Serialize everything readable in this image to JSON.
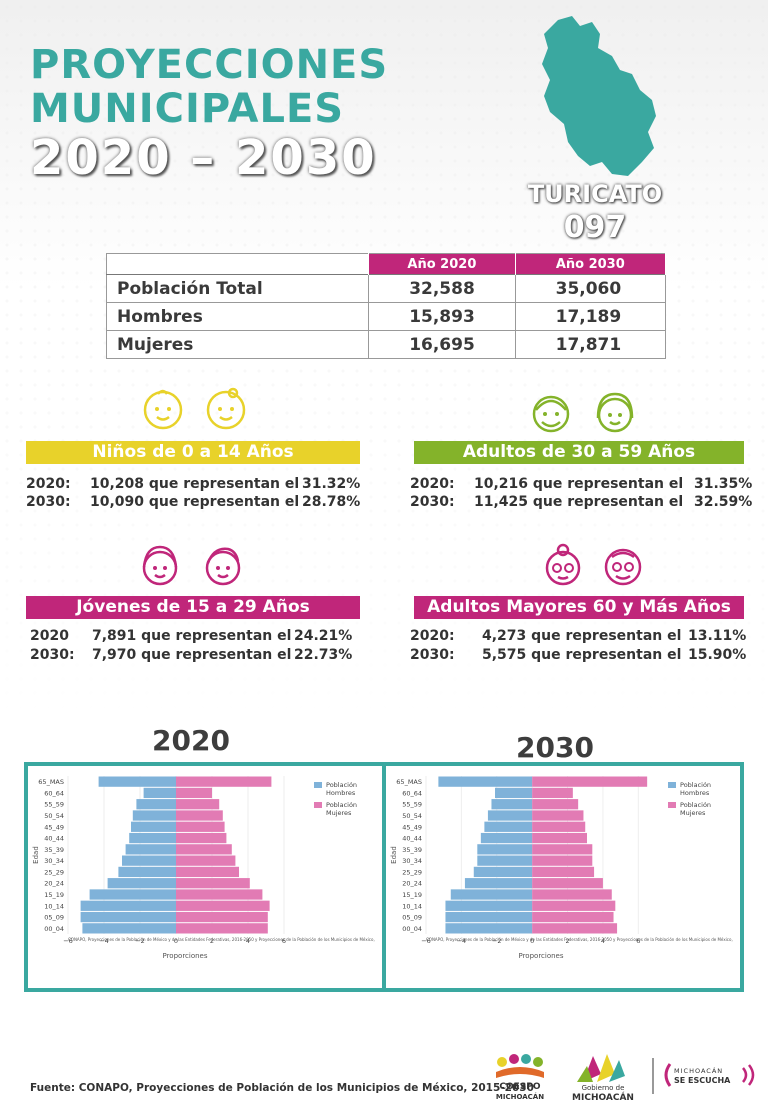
{
  "header": {
    "title_line1": "PROYECCIONES",
    "title_line2": "MUNICIPALES",
    "title_line3": "2020 – 2030",
    "municipality": "TURICATO",
    "code": "097"
  },
  "population_table": {
    "col_2020": "Año 2020",
    "col_2030": "Año 2030",
    "rows": [
      {
        "label": "Población Total",
        "v2020": "32,588",
        "v2030": "35,060"
      },
      {
        "label": "Hombres",
        "v2020": "15,893",
        "v2030": "17,189"
      },
      {
        "label": "Mujeres",
        "v2020": "16,695",
        "v2030": "17,871"
      }
    ]
  },
  "age_groups": {
    "ninos": {
      "title": "Niños de 0 a 14 Años",
      "rows": [
        {
          "year": "2020:",
          "value": "10,208 que representan el",
          "pct": "31.32%"
        },
        {
          "year": "2030:",
          "value": "10,090 que representan el",
          "pct": "28.78%"
        }
      ]
    },
    "adultos": {
      "title": "Adultos de 30 a 59 Años",
      "rows": [
        {
          "year": "2020:",
          "value": "10,216 que representan el",
          "pct": "31.35%"
        },
        {
          "year": "2030:",
          "value": "11,425 que representan el",
          "pct": "32.59%"
        }
      ]
    },
    "jovenes": {
      "title": "Jóvenes de 15 a 29 Años",
      "rows": [
        {
          "year": "2020",
          "value": "7,891 que representan el",
          "pct": "24.21%"
        },
        {
          "year": "2030:",
          "value": "7,970 que representan el",
          "pct": "22.73%"
        }
      ]
    },
    "mayores": {
      "title": "Adultos Mayores  60 y Más Años",
      "rows": [
        {
          "year": "2020:",
          "value": "4,273 que representan el",
          "pct": "13.11%"
        },
        {
          "year": "2030:",
          "value": "5,575 que representan el",
          "pct": "15.90%"
        }
      ]
    }
  },
  "colors": {
    "teal": "#3aa8a0",
    "magenta": "#c0267a",
    "yellow": "#e8d22a",
    "green": "#84b32a",
    "hombres": "#7fb2d9",
    "mujeres": "#e27bb4"
  },
  "chart_data": [
    {
      "type": "bar",
      "title": "2020",
      "xlabel": "Proporciones",
      "ylabel": "Edad",
      "categories": [
        "00_04",
        "05_09",
        "10_14",
        "15_19",
        "20_24",
        "25_29",
        "30_34",
        "35_39",
        "40_44",
        "45_49",
        "50_54",
        "55_59",
        "60_64",
        "65_MAS"
      ],
      "series": [
        {
          "name": "Población Hombres",
          "values": [
            -5.2,
            -5.3,
            -5.3,
            -4.8,
            -3.8,
            -3.2,
            -3.0,
            -2.8,
            -2.6,
            -2.5,
            -2.4,
            -2.2,
            -1.8,
            -4.3
          ]
        },
        {
          "name": "Población Mujeres",
          "values": [
            5.1,
            5.1,
            5.2,
            4.8,
            4.1,
            3.5,
            3.3,
            3.1,
            2.8,
            2.7,
            2.6,
            2.4,
            2.0,
            5.3
          ]
        }
      ],
      "xlim": [
        -6,
        7
      ],
      "xticks": [
        "−6",
        "−4",
        "−2",
        "0",
        "2",
        "4",
        "6"
      ],
      "legend": "top-right",
      "note": "CONAPO, Proyecciones de la Población de México y de las Entidades Federativas, 2016-2050 y Proyecciones de la Población de los Municipios de México,"
    },
    {
      "type": "bar",
      "title": "2030",
      "xlabel": "Proporciones",
      "ylabel": "Edad",
      "categories": [
        "00_04",
        "05_09",
        "10_14",
        "15_19",
        "20_24",
        "25_29",
        "30_34",
        "35_39",
        "40_44",
        "45_49",
        "50_54",
        "55_59",
        "60_64",
        "65_MAS"
      ],
      "series": [
        {
          "name": "Población Hombres",
          "values": [
            -4.9,
            -4.9,
            -4.9,
            -4.6,
            -3.8,
            -3.3,
            -3.1,
            -3.1,
            -2.9,
            -2.7,
            -2.5,
            -2.3,
            -2.1,
            -5.3
          ]
        },
        {
          "name": "Población Mujeres",
          "values": [
            4.8,
            4.6,
            4.7,
            4.5,
            4.0,
            3.5,
            3.4,
            3.4,
            3.1,
            3.0,
            2.9,
            2.6,
            2.3,
            6.5
          ]
        }
      ],
      "xlim": [
        -6,
        7
      ],
      "xticks": [
        "−6",
        "−4",
        "−2",
        "0",
        "2",
        "4",
        "6"
      ],
      "legend": "top-right",
      "note": "CONAPO, Proyecciones de la Población de México y de las Entidades Federativas, 2016-2050 y Proyecciones de la Población de los Municipios de México,"
    }
  ],
  "footer": {
    "source": "Fuente: CONAPO, Proyecciones de Población de los Municipios de México, 2015-2030",
    "logo1_line1": "COESPO",
    "logo1_line2": "MICHOACÁN",
    "logo2_line1": "Gobierno de",
    "logo2_line2": "MICHOACÁN",
    "logo3_line1": "MICHOACÁN",
    "logo3_line2": "SE ESCUCHA"
  }
}
